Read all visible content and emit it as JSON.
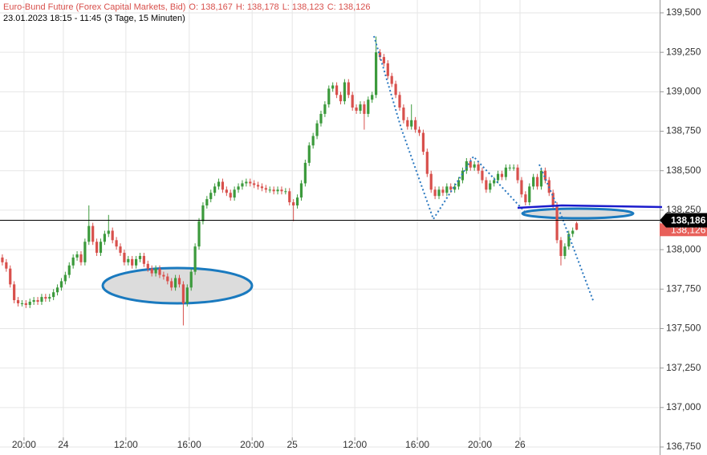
{
  "chart_data": {
    "type": "candlestick",
    "title": "Euro-Bund Future (Forex Capital Markets, Bid)",
    "ohlc_header": [
      "O: 138,167",
      "H: 138,178",
      "L: 138,123",
      "C: 138,126"
    ],
    "subtitle": "23.01.2023 18:15 - 11:45",
    "subtitle_note": "(3 Tage, 15 Minuten)",
    "up_color": "#3c9a3c",
    "down_color": "#d8504c",
    "open": [
      137.95,
      137.92,
      137.88,
      137.78,
      137.68,
      137.66,
      137.66,
      137.65,
      137.67,
      137.68,
      137.67,
      137.7,
      137.69,
      137.7,
      137.73,
      137.76,
      137.8,
      137.84,
      137.9,
      137.95,
      137.97,
      137.92,
      138.05,
      138.15,
      138.05,
      137.98,
      138.05,
      138.1,
      138.12,
      138.06,
      138.02,
      137.98,
      137.92,
      137.94,
      137.9,
      137.94,
      137.96,
      137.91,
      137.88,
      137.85,
      137.88,
      137.84,
      137.83,
      137.8,
      137.76,
      137.82,
      137.78,
      137.66,
      137.76,
      137.86,
      138.02,
      138.18,
      138.28,
      138.32,
      138.36,
      138.4,
      138.43,
      138.38,
      138.36,
      138.33,
      138.38,
      138.4,
      138.42,
      138.43,
      138.42,
      138.41,
      138.4,
      138.39,
      138.38,
      138.38,
      138.37,
      138.38,
      138.37,
      138.37,
      138.3,
      138.28,
      138.33,
      138.42,
      138.55,
      138.66,
      138.72,
      138.8,
      138.86,
      138.92,
      139.02,
      139.04,
      138.98,
      138.94,
      139.06,
      138.98,
      138.9,
      138.88,
      138.92,
      138.86,
      138.95,
      138.98,
      139.25,
      139.22,
      139.18,
      139.1,
      139.05,
      138.98,
      138.9,
      138.82,
      138.78,
      138.82,
      138.76,
      138.74,
      138.62,
      138.48,
      138.38,
      138.34,
      138.38,
      138.36,
      138.4,
      138.38,
      138.4,
      138.44,
      138.5,
      138.56,
      138.52,
      138.54,
      138.5,
      138.44,
      138.38,
      138.42,
      138.44,
      138.48,
      138.46,
      138.52,
      138.52,
      138.52,
      138.44,
      138.35,
      138.3,
      138.4,
      138.46,
      138.4,
      138.5,
      138.44,
      138.36,
      138.28,
      138.06,
      137.96,
      138.02,
      138.1,
      138.167
    ],
    "high": [
      137.97,
      137.94,
      137.9,
      137.8,
      137.7,
      137.68,
      137.68,
      137.69,
      137.7,
      137.7,
      137.72,
      137.72,
      137.72,
      137.75,
      137.78,
      137.82,
      137.86,
      137.92,
      137.97,
      137.99,
      137.99,
      138.07,
      138.28,
      138.17,
      138.07,
      138.07,
      138.12,
      138.22,
      138.14,
      138.08,
      138.04,
      138.0,
      137.96,
      137.96,
      137.96,
      137.98,
      137.98,
      137.93,
      137.9,
      137.9,
      137.9,
      137.86,
      137.85,
      137.82,
      137.84,
      137.84,
      137.8,
      137.78,
      137.88,
      138.04,
      138.2,
      138.3,
      138.34,
      138.38,
      138.42,
      138.45,
      138.45,
      138.4,
      138.38,
      138.4,
      138.42,
      138.44,
      138.45,
      138.45,
      138.44,
      138.43,
      138.42,
      138.41,
      138.4,
      138.4,
      138.4,
      138.4,
      138.39,
      138.39,
      138.32,
      138.35,
      138.44,
      138.57,
      138.68,
      138.74,
      138.82,
      138.88,
      138.94,
      139.04,
      139.06,
      139.06,
      139.0,
      139.08,
      139.08,
      139.0,
      138.92,
      138.94,
      138.94,
      138.97,
      139.0,
      139.35,
      139.27,
      139.24,
      139.2,
      139.12,
      139.07,
      139.0,
      138.92,
      138.84,
      138.92,
      138.84,
      138.78,
      138.76,
      138.64,
      138.5,
      138.4,
      138.4,
      138.4,
      138.42,
      138.42,
      138.42,
      138.46,
      138.52,
      138.58,
      138.58,
      138.56,
      138.56,
      138.52,
      138.46,
      138.44,
      138.46,
      138.5,
      138.5,
      138.54,
      138.54,
      138.54,
      138.54,
      138.46,
      138.37,
      138.42,
      138.48,
      138.48,
      138.52,
      138.52,
      138.46,
      138.38,
      138.3,
      138.08,
      138.04,
      138.12,
      138.14,
      138.178
    ],
    "low": [
      137.9,
      137.86,
      137.76,
      137.66,
      137.64,
      137.64,
      137.63,
      137.63,
      137.65,
      137.65,
      137.65,
      137.67,
      137.67,
      137.68,
      137.71,
      137.74,
      137.78,
      137.82,
      137.88,
      137.93,
      137.9,
      137.9,
      138.03,
      138.03,
      137.96,
      137.96,
      138.03,
      138.08,
      138.04,
      138.0,
      137.96,
      137.9,
      137.9,
      137.88,
      137.88,
      137.92,
      137.89,
      137.86,
      137.83,
      137.83,
      137.82,
      137.81,
      137.78,
      137.74,
      137.74,
      137.76,
      137.52,
      137.64,
      137.74,
      137.84,
      138.0,
      138.16,
      138.26,
      138.3,
      138.34,
      138.38,
      138.36,
      138.34,
      138.31,
      138.31,
      138.36,
      138.38,
      138.4,
      138.4,
      138.39,
      138.38,
      138.37,
      138.36,
      138.36,
      138.35,
      138.35,
      138.35,
      138.35,
      138.28,
      138.18,
      138.26,
      138.31,
      138.4,
      138.53,
      138.64,
      138.7,
      138.78,
      138.84,
      138.9,
      139.0,
      138.96,
      138.92,
      138.92,
      138.96,
      138.88,
      138.86,
      138.86,
      138.76,
      138.84,
      138.93,
      138.96,
      139.2,
      139.16,
      139.08,
      139.03,
      138.96,
      138.88,
      138.8,
      138.76,
      138.76,
      138.74,
      138.72,
      138.6,
      138.46,
      138.36,
      138.32,
      138.32,
      138.34,
      138.34,
      138.36,
      138.36,
      138.38,
      138.42,
      138.48,
      138.5,
      138.5,
      138.48,
      138.42,
      138.36,
      138.36,
      138.4,
      138.42,
      138.44,
      138.44,
      138.5,
      138.5,
      138.42,
      138.33,
      138.28,
      138.28,
      138.38,
      138.38,
      138.38,
      138.42,
      138.34,
      138.26,
      138.04,
      137.9,
      137.94,
      138.0,
      138.08,
      138.123
    ],
    "close": [
      137.92,
      137.88,
      137.78,
      137.68,
      137.66,
      137.66,
      137.65,
      137.67,
      137.68,
      137.67,
      137.7,
      137.69,
      137.7,
      137.73,
      137.76,
      137.8,
      137.84,
      137.9,
      137.95,
      137.97,
      137.92,
      138.05,
      138.15,
      138.05,
      137.98,
      138.05,
      138.1,
      138.12,
      138.06,
      138.02,
      137.98,
      137.92,
      137.94,
      137.9,
      137.94,
      137.96,
      137.91,
      137.88,
      137.85,
      137.88,
      137.84,
      137.83,
      137.8,
      137.76,
      137.82,
      137.78,
      137.66,
      137.76,
      137.86,
      138.02,
      138.18,
      138.28,
      138.32,
      138.36,
      138.4,
      138.43,
      138.38,
      138.36,
      138.33,
      138.38,
      138.4,
      138.42,
      138.43,
      138.42,
      138.41,
      138.4,
      138.39,
      138.38,
      138.38,
      138.37,
      138.38,
      138.37,
      138.37,
      138.3,
      138.28,
      138.33,
      138.42,
      138.55,
      138.66,
      138.72,
      138.8,
      138.86,
      138.92,
      139.02,
      139.04,
      138.98,
      138.94,
      139.06,
      138.98,
      138.9,
      138.88,
      138.92,
      138.86,
      138.95,
      138.98,
      139.25,
      139.22,
      139.18,
      139.1,
      139.05,
      138.98,
      138.9,
      138.82,
      138.78,
      138.82,
      138.76,
      138.74,
      138.62,
      138.48,
      138.38,
      138.34,
      138.38,
      138.36,
      138.4,
      138.38,
      138.4,
      138.44,
      138.5,
      138.56,
      138.52,
      138.54,
      138.5,
      138.44,
      138.38,
      138.42,
      138.44,
      138.48,
      138.46,
      138.52,
      138.52,
      138.52,
      138.44,
      138.35,
      138.3,
      138.4,
      138.46,
      138.4,
      138.5,
      138.44,
      138.36,
      138.28,
      138.06,
      137.96,
      138.02,
      138.1,
      138.12,
      138.126
    ],
    "xlim": [
      -0.6,
      167.1
    ],
    "xticks": [
      {
        "value": 5.5,
        "label": "20:00"
      },
      {
        "value": 15.5,
        "label": "24"
      },
      {
        "value": 31.4,
        "label": "12:00"
      },
      {
        "value": 47.5,
        "label": "16:00"
      },
      {
        "value": 63.5,
        "label": "20:00"
      },
      {
        "value": 73.7,
        "label": "25"
      },
      {
        "value": 89.6,
        "label": "12:00"
      },
      {
        "value": 105.5,
        "label": "16:00"
      },
      {
        "value": 121.4,
        "label": "20:00"
      },
      {
        "value": 131.6,
        "label": "26"
      }
    ],
    "ylim": [
      136.75,
      139.5
    ],
    "yticks": [
      {
        "value": 136.75,
        "label": "136,750"
      },
      {
        "value": 137,
        "label": "137,000"
      },
      {
        "value": 137.25,
        "label": "137,250"
      },
      {
        "value": 137.5,
        "label": "137,500"
      },
      {
        "value": 137.75,
        "label": "137,750"
      },
      {
        "value": 138,
        "label": "138,000"
      },
      {
        "value": 138.25,
        "label": "138,250"
      },
      {
        "value": 138.5,
        "label": "138,500"
      },
      {
        "value": 138.75,
        "label": "138,750"
      },
      {
        "value": 139,
        "label": "139,000"
      },
      {
        "value": 139.25,
        "label": "139,250"
      },
      {
        "value": 139.5,
        "label": "139,500"
      }
    ],
    "grid": true,
    "level_line": {
      "value": 138.186,
      "label": "138,186"
    },
    "last_price": {
      "value": 138.126,
      "label": "138,126"
    }
  }
}
